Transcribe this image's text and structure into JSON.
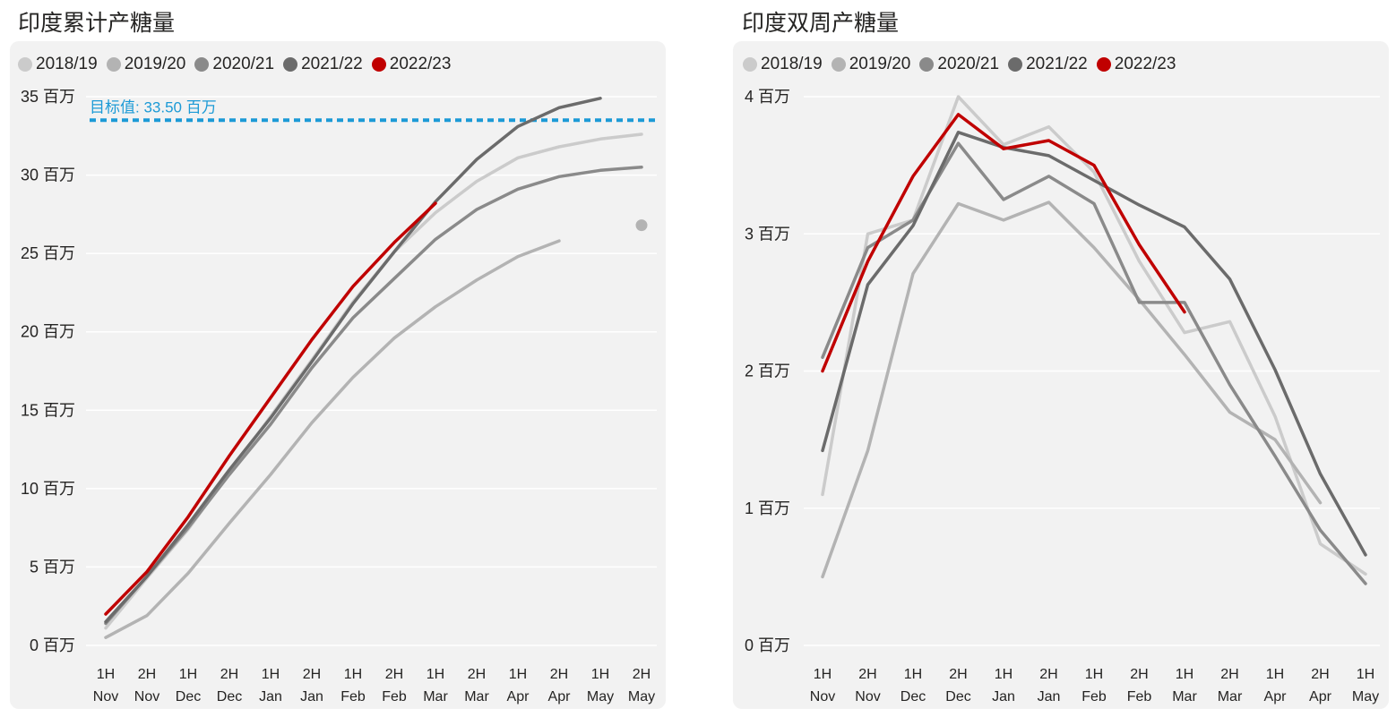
{
  "colors": {
    "s2018": "#cbcbcb",
    "s2019": "#b3b3b3",
    "s2020": "#8a8a8a",
    "s2021": "#6b6b6b",
    "s2022": "#c00000",
    "target": "#1c9ad6",
    "grid": "#ffffff",
    "card": "#f2f2f2"
  },
  "chart_data": [
    {
      "type": "line",
      "title": "印度累计产糖量",
      "unit_suffix": "百万",
      "x_ticks": [
        {
          "top": "1H",
          "bottom": "Nov"
        },
        {
          "top": "2H",
          "bottom": "Nov"
        },
        {
          "top": "1H",
          "bottom": "Dec"
        },
        {
          "top": "2H",
          "bottom": "Dec"
        },
        {
          "top": "1H",
          "bottom": "Jan"
        },
        {
          "top": "2H",
          "bottom": "Jan"
        },
        {
          "top": "1H",
          "bottom": "Feb"
        },
        {
          "top": "2H",
          "bottom": "Feb"
        },
        {
          "top": "1H",
          "bottom": "Mar"
        },
        {
          "top": "2H",
          "bottom": "Mar"
        },
        {
          "top": "1H",
          "bottom": "Apr"
        },
        {
          "top": "2H",
          "bottom": "Apr"
        },
        {
          "top": "1H",
          "bottom": "May"
        },
        {
          "top": "2H",
          "bottom": "May"
        }
      ],
      "y_ticks": [
        0,
        5,
        10,
        15,
        20,
        25,
        30,
        35
      ],
      "y_tick_labels": [
        "0 百万",
        "5 百万",
        "10 百万",
        "15 百万",
        "20 百万",
        "25 百万",
        "30 百万",
        "35 百万"
      ],
      "ylim": [
        0,
        35
      ],
      "target": {
        "value": 33.5,
        "label": "目标值: 33.50 百万"
      },
      "series": [
        {
          "name": "2018/19",
          "key": "s2018",
          "values": [
            1.1,
            4.3,
            7.4,
            11.0,
            14.6,
            18.2,
            21.9,
            25.1,
            27.6,
            29.6,
            31.1,
            31.8,
            32.3,
            32.6
          ]
        },
        {
          "name": "2019/20",
          "key": "s2019",
          "values": [
            0.5,
            1.9,
            4.6,
            7.8,
            10.9,
            14.2,
            17.1,
            19.6,
            21.6,
            23.3,
            24.8,
            25.8
          ]
        },
        {
          "name": "2020/21",
          "key": "s2020",
          "values": [
            1.4,
            4.4,
            7.5,
            10.9,
            14.1,
            17.7,
            20.9,
            23.4,
            25.9,
            27.8,
            29.1,
            29.9,
            30.3,
            30.5
          ]
        },
        {
          "name": "2021/22",
          "key": "s2021",
          "values": [
            1.5,
            4.4,
            7.7,
            11.2,
            14.5,
            18.1,
            21.8,
            25.1,
            28.3,
            31.0,
            33.1,
            34.3,
            34.9
          ]
        },
        {
          "name": "2022/23",
          "key": "s2022",
          "values": [
            2.0,
            4.7,
            8.2,
            12.1,
            15.8,
            19.5,
            22.9,
            25.7,
            28.2
          ]
        }
      ],
      "extra_points": [
        {
          "series_key": "s2019",
          "x_index": 13,
          "value": 26.8
        }
      ]
    },
    {
      "type": "line",
      "title": "印度双周产糖量",
      "unit_suffix": "百万",
      "x_ticks": [
        {
          "top": "1H",
          "bottom": "Nov"
        },
        {
          "top": "2H",
          "bottom": "Nov"
        },
        {
          "top": "1H",
          "bottom": "Dec"
        },
        {
          "top": "2H",
          "bottom": "Dec"
        },
        {
          "top": "1H",
          "bottom": "Jan"
        },
        {
          "top": "2H",
          "bottom": "Jan"
        },
        {
          "top": "1H",
          "bottom": "Feb"
        },
        {
          "top": "2H",
          "bottom": "Feb"
        },
        {
          "top": "1H",
          "bottom": "Mar"
        },
        {
          "top": "2H",
          "bottom": "Mar"
        },
        {
          "top": "1H",
          "bottom": "Apr"
        },
        {
          "top": "2H",
          "bottom": "Apr"
        },
        {
          "top": "1H",
          "bottom": "May"
        }
      ],
      "y_ticks": [
        0,
        1,
        2,
        3,
        4
      ],
      "y_tick_labels": [
        "0 百万",
        "1 百万",
        "2 百万",
        "3 百万",
        "4 百万"
      ],
      "ylim": [
        0,
        4
      ],
      "series": [
        {
          "name": "2018/19",
          "key": "s2018",
          "values": [
            1.1,
            3.0,
            3.1,
            4.0,
            3.65,
            3.78,
            3.45,
            2.8,
            2.28,
            2.36,
            1.67,
            0.74,
            0.52
          ]
        },
        {
          "name": "2019/20",
          "key": "s2019",
          "values": [
            0.5,
            1.42,
            2.71,
            3.22,
            3.1,
            3.23,
            2.9,
            2.52,
            2.12,
            1.7,
            1.5,
            1.04
          ]
        },
        {
          "name": "2020/21",
          "key": "s2020",
          "values": [
            2.1,
            2.9,
            3.1,
            3.66,
            3.25,
            3.42,
            3.22,
            2.5,
            2.5,
            1.9,
            1.38,
            0.84,
            0.45
          ]
        },
        {
          "name": "2021/22",
          "key": "s2021",
          "values": [
            1.42,
            2.63,
            3.06,
            3.74,
            3.63,
            3.57,
            3.39,
            3.21,
            3.05,
            2.67,
            2.01,
            1.25,
            0.66
          ]
        },
        {
          "name": "2022/23",
          "key": "s2022",
          "values": [
            2.0,
            2.8,
            3.42,
            3.87,
            3.62,
            3.68,
            3.5,
            2.92,
            2.43
          ]
        }
      ]
    }
  ]
}
